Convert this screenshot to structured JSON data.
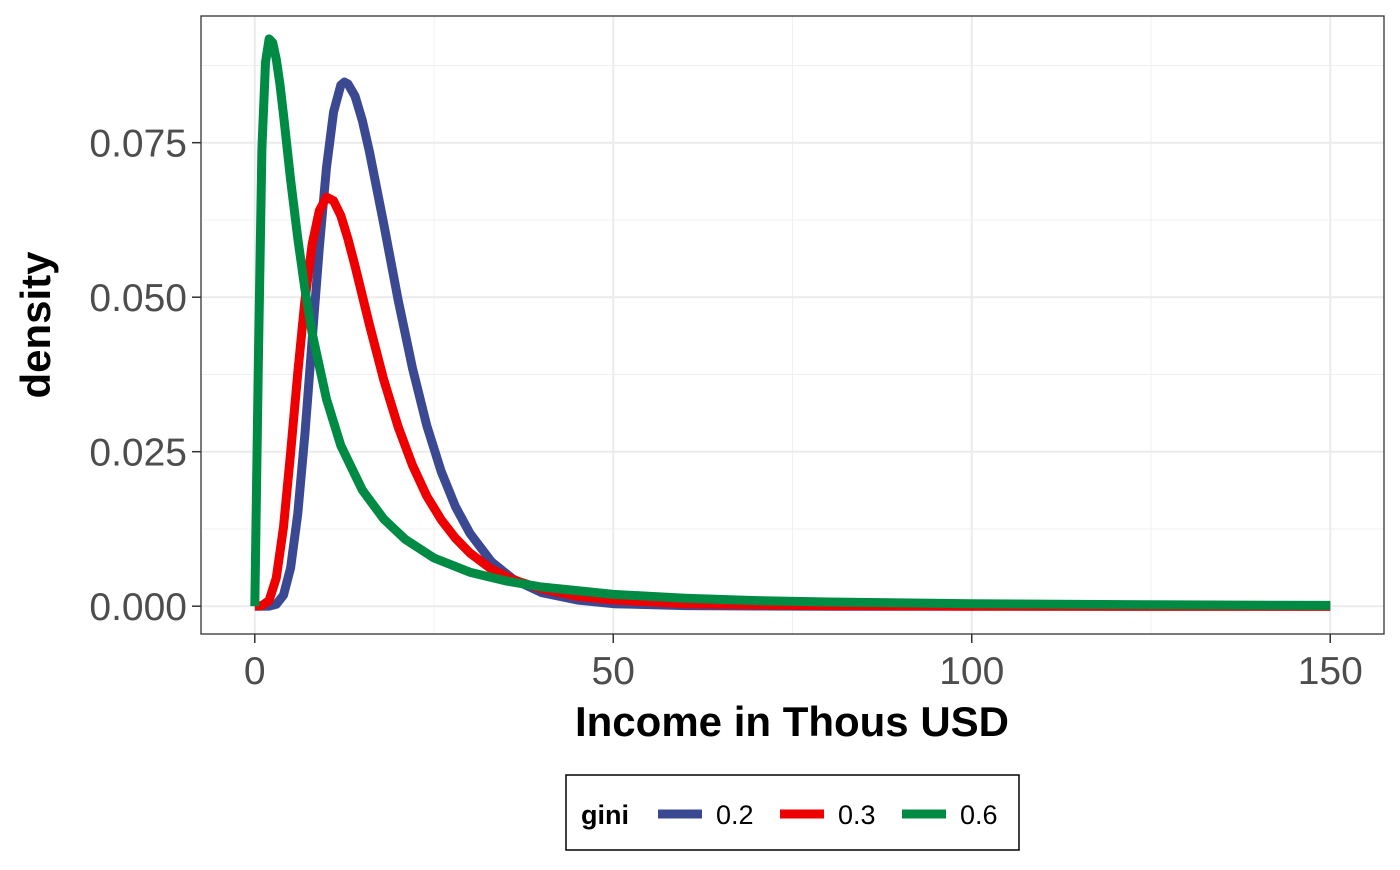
{
  "chart_data": {
    "type": "line",
    "title": "",
    "xlabel": "Income in Thous USD",
    "ylabel": "density",
    "xlim": [
      -7.5,
      157.5
    ],
    "ylim": [
      -0.0045,
      0.0955
    ],
    "xticks": [
      0,
      50,
      100,
      150
    ],
    "xtick_labels": [
      "0",
      "50",
      "100",
      "150"
    ],
    "xminor": [
      25,
      75,
      125
    ],
    "yticks": [
      0,
      0.025,
      0.05,
      0.075
    ],
    "ytick_labels": [
      "0.000",
      "0.025",
      "0.050",
      "0.075"
    ],
    "yminor": [
      0.0125,
      0.0375,
      0.0625,
      0.0875
    ],
    "grid": true,
    "legend": {
      "position": "bottom",
      "title": "gini",
      "entries": [
        "0.2",
        "0.3",
        "0.6"
      ]
    },
    "series": [
      {
        "name": "0.2",
        "color": "#3B4992",
        "x": [
          0,
          2,
          3,
          4,
          5,
          6,
          7,
          8,
          9,
          10,
          11,
          12,
          12.5,
          13,
          14,
          15,
          16,
          18,
          20,
          22,
          24,
          26,
          28,
          30,
          33,
          36,
          40,
          45,
          50,
          60,
          70,
          80,
          100,
          125,
          150
        ],
        "y": [
          0,
          2e-05,
          0.0003,
          0.0018,
          0.0062,
          0.015,
          0.028,
          0.043,
          0.058,
          0.071,
          0.08,
          0.0843,
          0.0848,
          0.0845,
          0.0825,
          0.0786,
          0.0735,
          0.0618,
          0.0495,
          0.0385,
          0.0292,
          0.0218,
          0.0161,
          0.0118,
          0.0072,
          0.0044,
          0.0022,
          0.001,
          0.0004,
          0.0001,
          3e-05,
          0,
          0,
          0,
          0
        ]
      },
      {
        "name": "0.3",
        "color": "#EE0000",
        "x": [
          0,
          1,
          2,
          3,
          4,
          5,
          6,
          7,
          8,
          9,
          10,
          11,
          12,
          13,
          14,
          16,
          18,
          20,
          22,
          24,
          26,
          28,
          30,
          33,
          36,
          40,
          45,
          50,
          60,
          70,
          80,
          100,
          125,
          150
        ],
        "y": [
          0,
          0.0001,
          0.0009,
          0.0046,
          0.0128,
          0.0248,
          0.0378,
          0.0496,
          0.0585,
          0.064,
          0.0662,
          0.0656,
          0.0632,
          0.0594,
          0.055,
          0.0455,
          0.0366,
          0.029,
          0.0228,
          0.0178,
          0.014,
          0.011,
          0.0086,
          0.006,
          0.0043,
          0.0028,
          0.0016,
          0.001,
          0.0004,
          0.0002,
          8e-05,
          2e-05,
          0,
          0
        ]
      },
      {
        "name": "0.6",
        "color": "#008B45",
        "x": [
          0,
          0.5,
          1,
          1.5,
          2,
          2.5,
          3,
          3.5,
          4,
          5,
          6,
          7,
          8,
          10,
          12,
          15,
          18,
          21,
          25,
          30,
          35,
          40,
          50,
          60,
          70,
          80,
          100,
          125,
          150
        ],
        "y": [
          0,
          0.04,
          0.074,
          0.088,
          0.0918,
          0.0912,
          0.0885,
          0.0845,
          0.0795,
          0.069,
          0.0595,
          0.0512,
          0.0442,
          0.0335,
          0.026,
          0.0188,
          0.0141,
          0.0108,
          0.0078,
          0.0055,
          0.0041,
          0.0031,
          0.0019,
          0.0013,
          0.0009,
          0.00067,
          0.0004,
          0.00022,
          0.00013
        ]
      }
    ]
  }
}
